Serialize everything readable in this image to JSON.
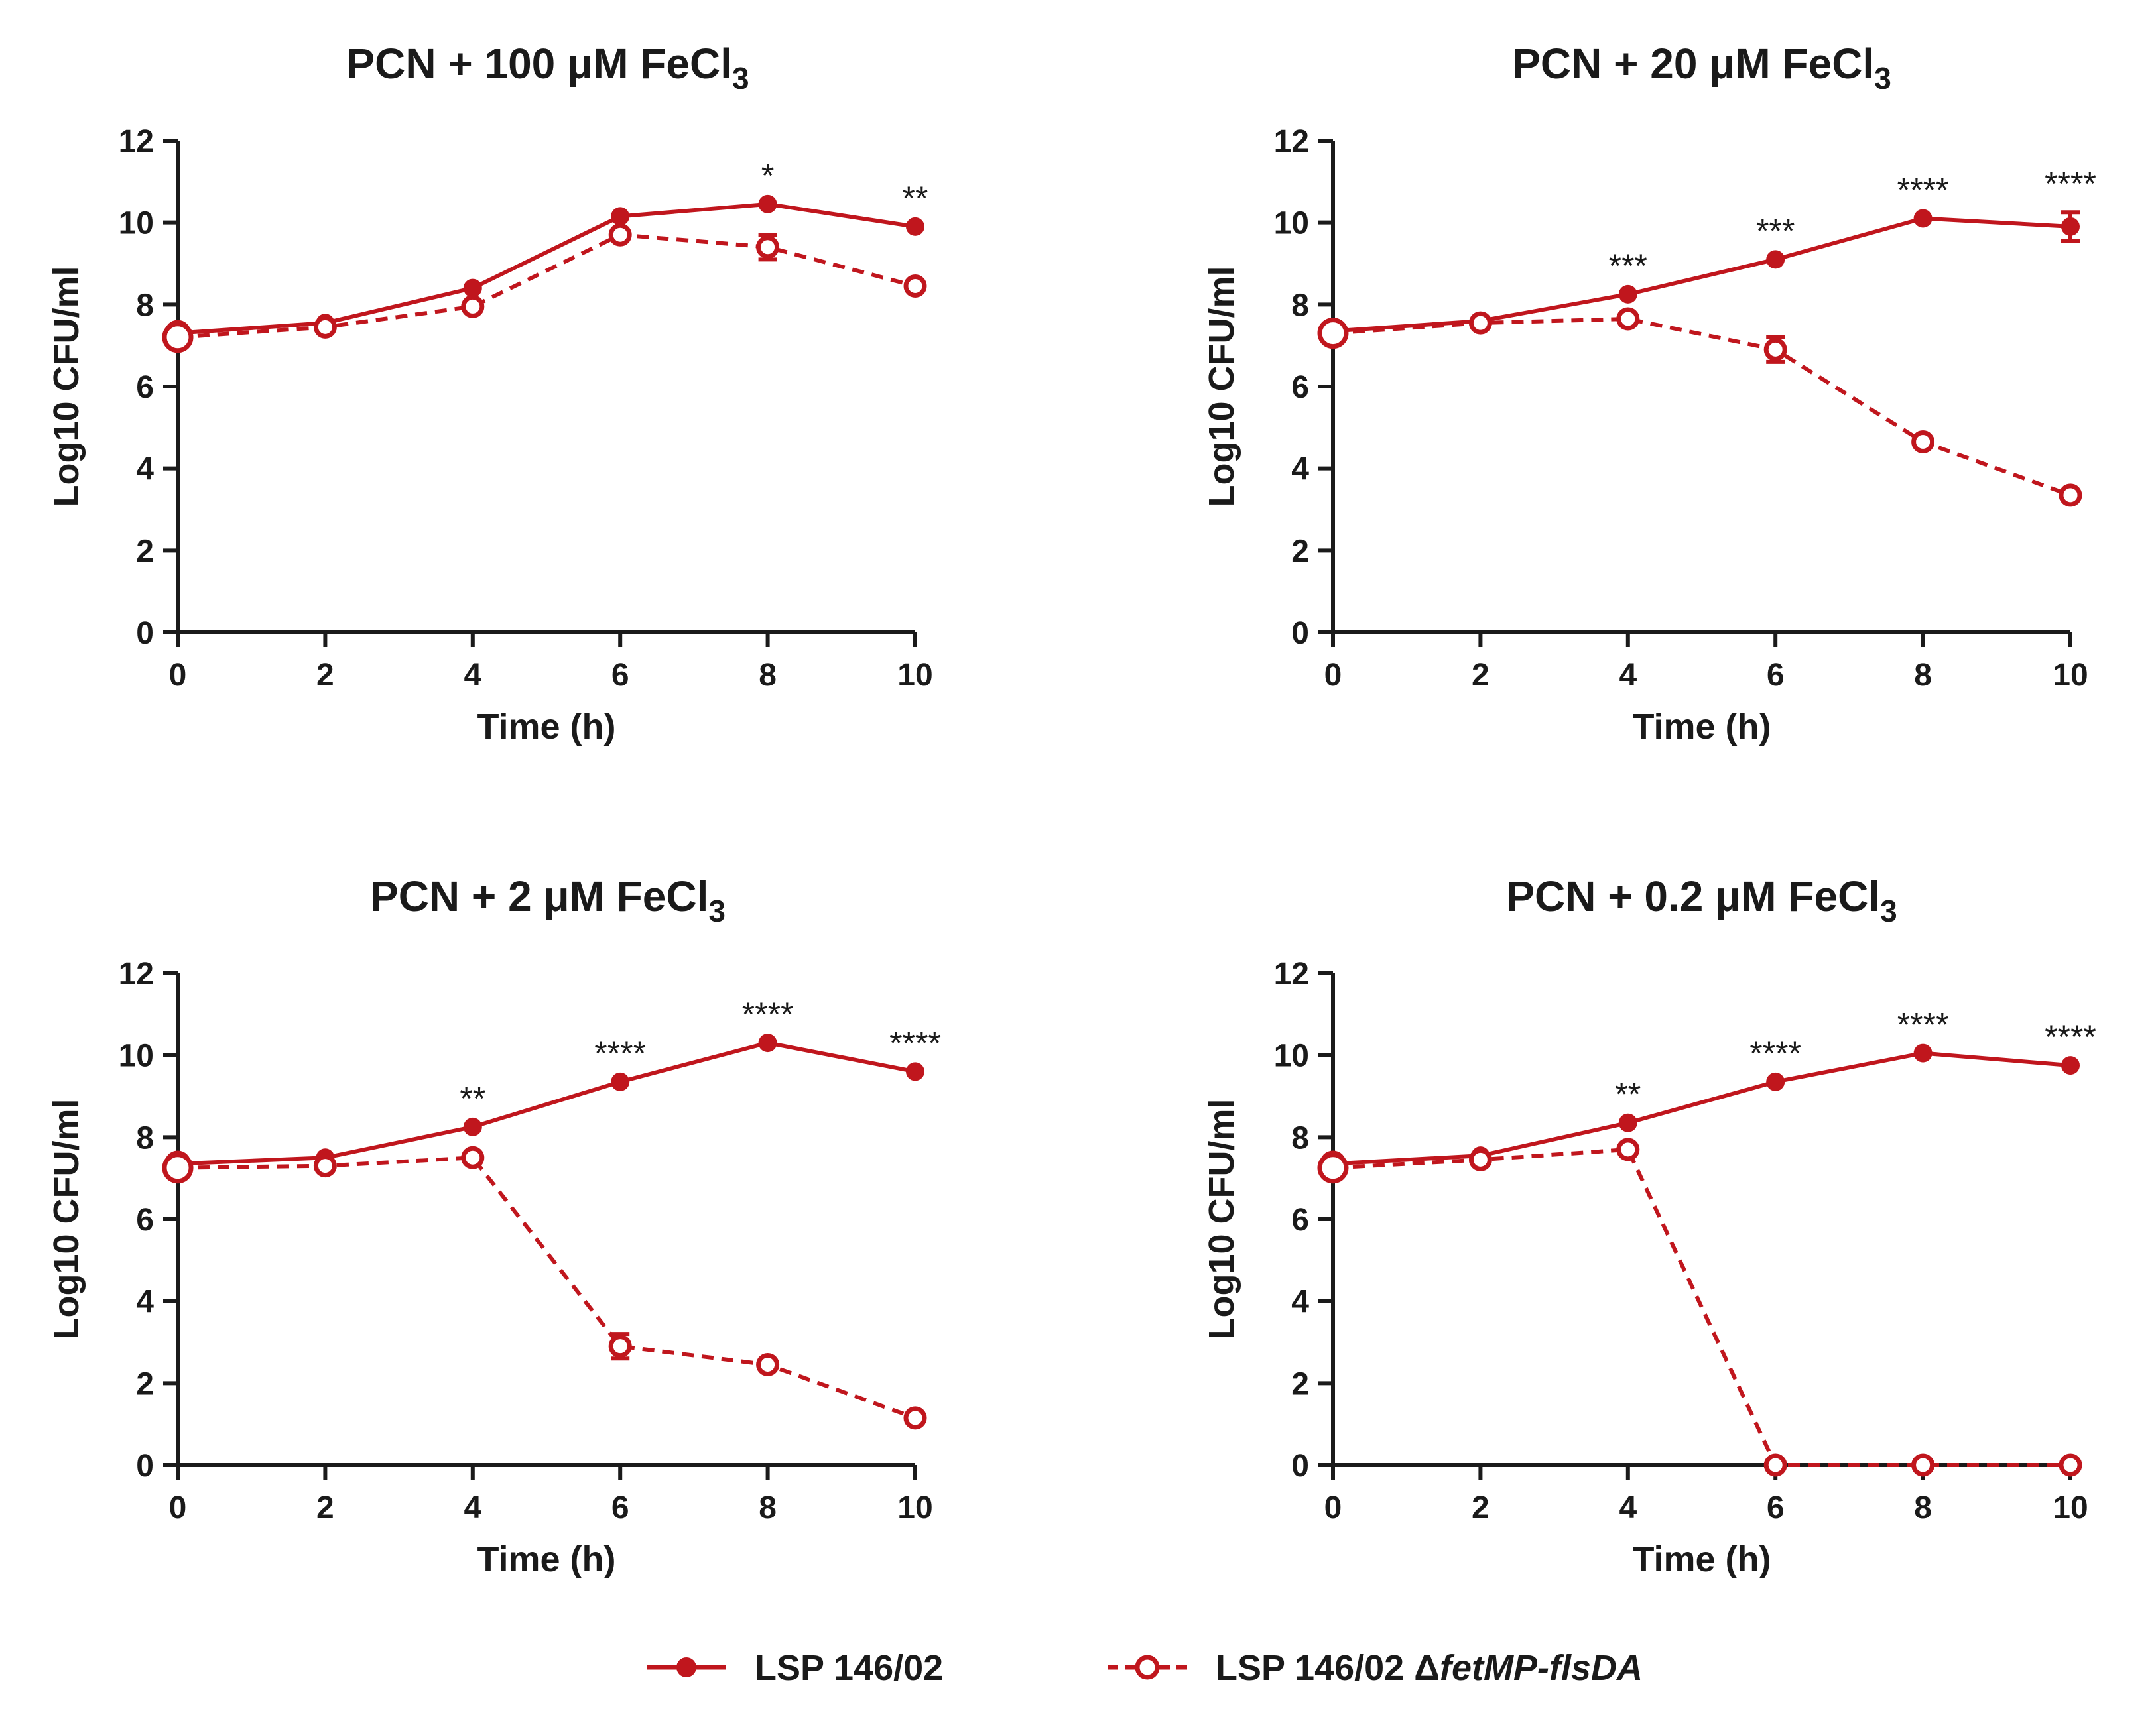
{
  "chart_data": [
    {
      "type": "line",
      "title": "PCN + 100 μM FeCl",
      "title_sub": "3",
      "xlabel": "Time (h)",
      "ylabel": "Log10 CFU/ml",
      "x": [
        0,
        2,
        4,
        6,
        8,
        10
      ],
      "xlim": [
        0,
        10
      ],
      "ylim": [
        0,
        12
      ],
      "xticks": [
        "0",
        "2",
        "4",
        "6",
        "8",
        "10"
      ],
      "yticks": [
        "0",
        "2",
        "4",
        "6",
        "8",
        "10",
        "12"
      ],
      "series": [
        {
          "name": "LSP 146/02",
          "values": [
            7.3,
            7.55,
            8.4,
            10.15,
            10.45,
            9.9
          ],
          "errors": [
            0,
            0,
            0,
            0,
            0,
            0
          ]
        },
        {
          "name": "LSP 146/02 ΔfetMP-flsDA",
          "values": [
            7.2,
            7.45,
            7.95,
            9.7,
            9.4,
            8.45
          ],
          "errors": [
            0,
            0,
            0,
            0,
            0.3,
            0
          ]
        }
      ],
      "annotations": [
        {
          "x": 8,
          "text": "*"
        },
        {
          "x": 10,
          "text": "**"
        }
      ]
    },
    {
      "type": "line",
      "title": "PCN + 20 μM FeCl",
      "title_sub": "3",
      "xlabel": "Time (h)",
      "ylabel": "Log10 CFU/ml",
      "x": [
        0,
        2,
        4,
        6,
        8,
        10
      ],
      "xlim": [
        0,
        10
      ],
      "ylim": [
        0,
        12
      ],
      "xticks": [
        "0",
        "2",
        "4",
        "6",
        "8",
        "10"
      ],
      "yticks": [
        "0",
        "2",
        "4",
        "6",
        "8",
        "10",
        "12"
      ],
      "series": [
        {
          "name": "LSP 146/02",
          "values": [
            7.35,
            7.6,
            8.25,
            9.1,
            10.1,
            9.9
          ],
          "errors": [
            0,
            0,
            0,
            0,
            0,
            0.35
          ]
        },
        {
          "name": "LSP 146/02 ΔfetMP-flsDA",
          "values": [
            7.3,
            7.55,
            7.65,
            6.9,
            4.65,
            3.35
          ],
          "errors": [
            0,
            0,
            0,
            0.3,
            0,
            0
          ]
        }
      ],
      "annotations": [
        {
          "x": 4,
          "text": "***"
        },
        {
          "x": 6,
          "text": "***"
        },
        {
          "x": 8,
          "text": "****"
        },
        {
          "x": 10,
          "text": "****"
        }
      ]
    },
    {
      "type": "line",
      "title": "PCN + 2 μM FeCl",
      "title_sub": "3",
      "xlabel": "Time (h)",
      "ylabel": "Log10 CFU/ml",
      "x": [
        0,
        2,
        4,
        6,
        8,
        10
      ],
      "xlim": [
        0,
        10
      ],
      "ylim": [
        0,
        12
      ],
      "xticks": [
        "0",
        "2",
        "4",
        "6",
        "8",
        "10"
      ],
      "yticks": [
        "0",
        "2",
        "4",
        "6",
        "8",
        "10",
        "12"
      ],
      "series": [
        {
          "name": "LSP 146/02",
          "values": [
            7.35,
            7.5,
            8.25,
            9.35,
            10.3,
            9.6
          ],
          "errors": [
            0,
            0,
            0,
            0,
            0,
            0
          ]
        },
        {
          "name": "LSP 146/02 ΔfetMP-flsDA",
          "values": [
            7.25,
            7.3,
            7.5,
            2.9,
            2.45,
            1.15
          ],
          "errors": [
            0,
            0,
            0,
            0.3,
            0,
            0
          ]
        }
      ],
      "annotations": [
        {
          "x": 4,
          "text": "**"
        },
        {
          "x": 6,
          "text": "****"
        },
        {
          "x": 8,
          "text": "****"
        },
        {
          "x": 10,
          "text": "****"
        }
      ]
    },
    {
      "type": "line",
      "title": "PCN + 0.2 μM FeCl",
      "title_sub": "3",
      "xlabel": "Time (h)",
      "ylabel": "Log10 CFU/ml",
      "x": [
        0,
        2,
        4,
        6,
        8,
        10
      ],
      "xlim": [
        0,
        10
      ],
      "ylim": [
        0,
        12
      ],
      "xticks": [
        "0",
        "2",
        "4",
        "6",
        "8",
        "10"
      ],
      "yticks": [
        "0",
        "2",
        "4",
        "6",
        "8",
        "10",
        "12"
      ],
      "series": [
        {
          "name": "LSP 146/02",
          "values": [
            7.35,
            7.55,
            8.35,
            9.35,
            10.05,
            9.75
          ],
          "errors": [
            0,
            0,
            0,
            0,
            0,
            0
          ]
        },
        {
          "name": "LSP 146/02 ΔfetMP-flsDA",
          "values": [
            7.25,
            7.45,
            7.7,
            0,
            0,
            0
          ],
          "errors": [
            0,
            0,
            0,
            0,
            0,
            0
          ]
        }
      ],
      "annotations": [
        {
          "x": 4,
          "text": "**"
        },
        {
          "x": 6,
          "text": "****"
        },
        {
          "x": 8,
          "text": "****"
        },
        {
          "x": 10,
          "text": "****"
        }
      ]
    }
  ],
  "legend": {
    "items": [
      {
        "prefix": "LSP 146/02",
        "italic": ""
      },
      {
        "prefix": "LSP 146/02 Δ",
        "italic": "fetMP-flsDA"
      }
    ]
  },
  "colors": {
    "series": "#c0161d",
    "axis": "#1a1a1a",
    "text": "#1a1a1a"
  }
}
